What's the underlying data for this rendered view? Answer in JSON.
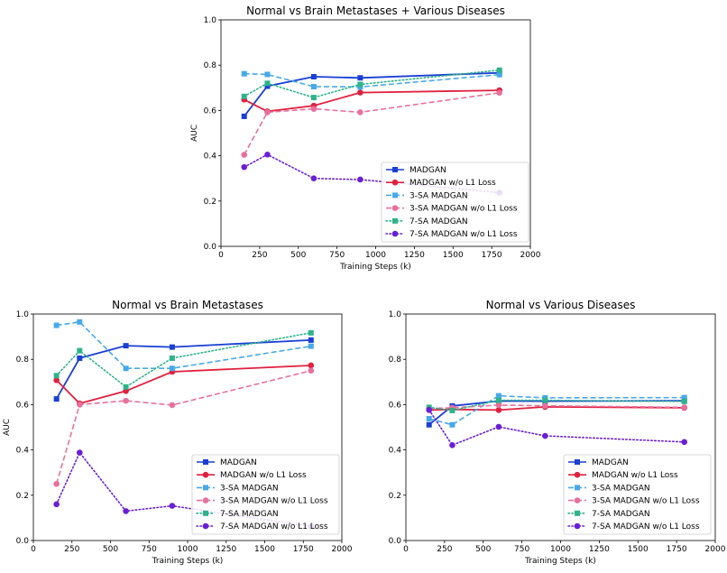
{
  "chart_data": [
    {
      "type": "line",
      "title": "Normal vs Brain Metastases + Various Diseases",
      "xlabel": "Training Steps (k)",
      "ylabel": "AUC",
      "xlim": [
        0,
        2000
      ],
      "ylim": [
        0,
        1.0
      ],
      "xticks": [
        0,
        250,
        500,
        750,
        1000,
        1250,
        1500,
        1750,
        2000
      ],
      "yticks": [
        "0.0",
        "0.2",
        "0.4",
        "0.6",
        "0.8",
        "1.0"
      ],
      "legend_position": "lower-right",
      "x": [
        150,
        300,
        600,
        900,
        1800
      ],
      "series": [
        {
          "name": "MADGAN",
          "values": [
            0.574,
            0.707,
            0.749,
            0.744,
            0.766
          ],
          "color": "#1a3fd4",
          "dash": "solid",
          "marker": "square"
        },
        {
          "name": "MADGAN w/o L1 Loss",
          "values": [
            0.648,
            0.596,
            0.621,
            0.679,
            0.689
          ],
          "color": "#e0203f",
          "dash": "solid",
          "marker": "circle"
        },
        {
          "name": "3-SA MADGAN",
          "values": [
            0.762,
            0.759,
            0.705,
            0.704,
            0.758
          ],
          "color": "#47a9e8",
          "dash": "dashed",
          "marker": "square"
        },
        {
          "name": "3-SA MADGAN w/o L1 Loss",
          "values": [
            0.404,
            0.592,
            0.607,
            0.592,
            0.678
          ],
          "color": "#e8709b",
          "dash": "dashed",
          "marker": "circle"
        },
        {
          "name": "7-SA MADGAN",
          "values": [
            0.662,
            0.72,
            0.657,
            0.715,
            0.778
          ],
          "color": "#2fb38a",
          "dash": "dotted",
          "marker": "square"
        },
        {
          "name": "7-SA MADGAN w/o L1 Loss",
          "values": [
            0.35,
            0.405,
            0.3,
            0.295,
            0.237
          ],
          "color": "#6a1fd6",
          "dash": "dotted",
          "marker": "circle"
        }
      ]
    },
    {
      "type": "line",
      "title": "Normal vs Brain Metastases",
      "xlabel": "Training Steps (k)",
      "ylabel": "AUC",
      "xlim": [
        0,
        2000
      ],
      "ylim": [
        0,
        1.0
      ],
      "xticks": [
        0,
        250,
        500,
        750,
        1000,
        1250,
        1500,
        1750,
        2000
      ],
      "yticks": [
        "0.0",
        "0.2",
        "0.4",
        "0.6",
        "0.8",
        "1.0"
      ],
      "legend_position": "lower-right",
      "x": [
        150,
        300,
        600,
        900,
        1800
      ],
      "series": [
        {
          "name": "MADGAN",
          "values": [
            0.625,
            0.805,
            0.86,
            0.854,
            0.885
          ],
          "color": "#1a3fd4",
          "dash": "solid",
          "marker": "square"
        },
        {
          "name": "MADGAN w/o L1 Loss",
          "values": [
            0.708,
            0.605,
            0.66,
            0.745,
            0.773
          ],
          "color": "#e0203f",
          "dash": "solid",
          "marker": "circle"
        },
        {
          "name": "3-SA MADGAN",
          "values": [
            0.95,
            0.965,
            0.76,
            0.76,
            0.858
          ],
          "color": "#47a9e8",
          "dash": "dashed",
          "marker": "square"
        },
        {
          "name": "3-SA MADGAN w/o L1 Loss",
          "values": [
            0.25,
            0.6,
            0.617,
            0.598,
            0.75
          ],
          "color": "#e8709b",
          "dash": "dashed",
          "marker": "circle"
        },
        {
          "name": "7-SA MADGAN",
          "values": [
            0.728,
            0.838,
            0.678,
            0.805,
            0.917
          ],
          "color": "#2fb38a",
          "dash": "dotted",
          "marker": "square"
        },
        {
          "name": "7-SA MADGAN w/o L1 Loss",
          "values": [
            0.16,
            0.388,
            0.13,
            0.153,
            0.062
          ],
          "color": "#6a1fd6",
          "dash": "dotted",
          "marker": "circle"
        }
      ]
    },
    {
      "type": "line",
      "title": "Normal vs Various Diseases",
      "xlabel": "Training Steps (k)",
      "ylabel": "",
      "xlim": [
        0,
        2000
      ],
      "ylim": [
        0,
        1.0
      ],
      "xticks": [
        0,
        250,
        500,
        750,
        1000,
        1250,
        1500,
        1750,
        2000
      ],
      "yticks": [
        "0.0",
        "0.2",
        "0.4",
        "0.6",
        "0.8",
        "1.0"
      ],
      "legend_position": "lower-right",
      "x": [
        150,
        300,
        600,
        900,
        1800
      ],
      "series": [
        {
          "name": "MADGAN",
          "values": [
            0.511,
            0.594,
            0.616,
            0.615,
            0.617
          ],
          "color": "#1a3fd4",
          "dash": "solid",
          "marker": "square"
        },
        {
          "name": "MADGAN w/o L1 Loss",
          "values": [
            0.576,
            0.579,
            0.576,
            0.59,
            0.586
          ],
          "color": "#e0203f",
          "dash": "solid",
          "marker": "circle"
        },
        {
          "name": "3-SA MADGAN",
          "values": [
            0.538,
            0.511,
            0.639,
            0.63,
            0.631
          ],
          "color": "#47a9e8",
          "dash": "dashed",
          "marker": "square"
        },
        {
          "name": "3-SA MADGAN w/o L1 Loss",
          "values": [
            0.583,
            0.586,
            0.598,
            0.595,
            0.588
          ],
          "color": "#e8709b",
          "dash": "dashed",
          "marker": "circle"
        },
        {
          "name": "7-SA MADGAN",
          "values": [
            0.588,
            0.574,
            0.619,
            0.619,
            0.614
          ],
          "color": "#2fb38a",
          "dash": "dotted",
          "marker": "square"
        },
        {
          "name": "7-SA MADGAN w/o L1 Loss",
          "values": [
            0.577,
            0.421,
            0.502,
            0.462,
            0.435
          ],
          "color": "#6a1fd6",
          "dash": "dotted",
          "marker": "circle"
        }
      ]
    }
  ]
}
